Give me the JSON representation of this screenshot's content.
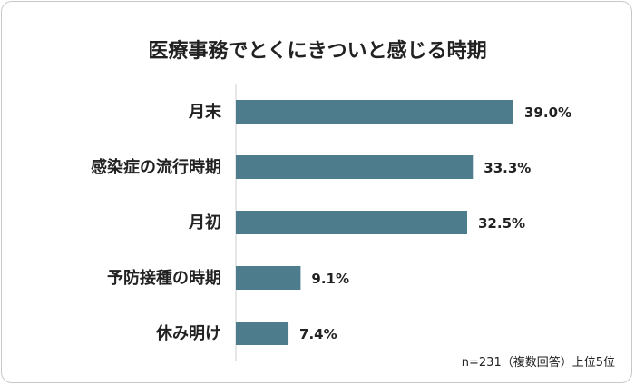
{
  "chart_data": {
    "type": "bar",
    "orientation": "horizontal",
    "title": "医療事務でとくにきついと感じる時期",
    "categories": [
      "月末",
      "感染症の流行時期",
      "月初",
      "予防接種の時期",
      "休み明け"
    ],
    "values": [
      39.0,
      33.3,
      32.5,
      9.1,
      7.4
    ],
    "value_labels": [
      "39.0%",
      "33.3%",
      "32.5%",
      "9.1%",
      "7.4%"
    ],
    "xlim": [
      0,
      45
    ],
    "bar_color": "#4d7d8c",
    "grid": false,
    "note": "n=231（複数回答）上位5位"
  }
}
